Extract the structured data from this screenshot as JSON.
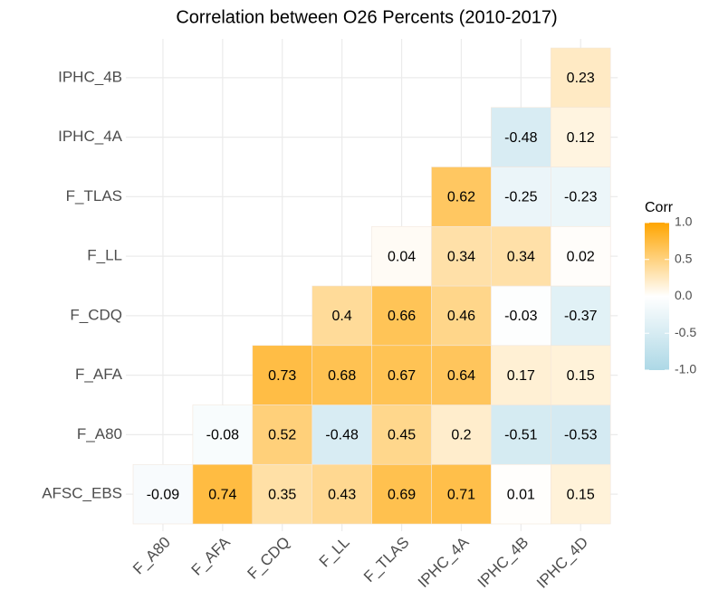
{
  "chart_data": {
    "type": "heatmap",
    "title": "Correlation between O26 Percents (2010-2017)",
    "x": [
      "F_A80",
      "F_AFA",
      "F_CDQ",
      "F_LL",
      "F_TLAS",
      "IPHC_4A",
      "IPHC_4B",
      "IPHC_4D"
    ],
    "y": [
      "AFSC_EBS",
      "F_A80",
      "F_AFA",
      "F_CDQ",
      "F_LL",
      "F_TLAS",
      "IPHC_4A",
      "IPHC_4B"
    ],
    "values": [
      [
        -0.09,
        0.74,
        0.35,
        0.43,
        0.69,
        0.71,
        0.01,
        0.15
      ],
      [
        null,
        -0.08,
        0.52,
        -0.48,
        0.45,
        0.2,
        -0.51,
        -0.53
      ],
      [
        null,
        null,
        0.73,
        0.68,
        0.67,
        0.64,
        0.17,
        0.15
      ],
      [
        null,
        null,
        null,
        0.4,
        0.66,
        0.46,
        -0.03,
        -0.37
      ],
      [
        null,
        null,
        null,
        null,
        0.04,
        0.34,
        0.34,
        0.02
      ],
      [
        null,
        null,
        null,
        null,
        null,
        0.62,
        -0.25,
        -0.23
      ],
      [
        null,
        null,
        null,
        null,
        null,
        null,
        -0.48,
        0.12
      ],
      [
        null,
        null,
        null,
        null,
        null,
        null,
        null,
        0.23
      ]
    ],
    "colors": {
      "low": "#add8e6",
      "mid": "#ffffff",
      "high": "#ffa500"
    },
    "legend_title": "Corr",
    "legend_lim": [
      -1,
      1
    ],
    "legend_ticks": [
      {
        "value": 1,
        "label": "1.0"
      },
      {
        "value": 0.5,
        "label": "0.5"
      },
      {
        "value": 0,
        "label": "0.0"
      },
      {
        "value": -0.5,
        "label": "-0.5"
      },
      {
        "value": -1,
        "label": "-1.0"
      }
    ],
    "grid": true
  }
}
